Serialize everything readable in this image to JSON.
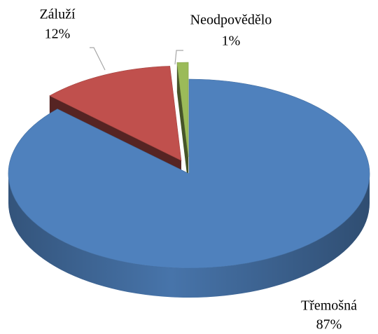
{
  "chart_data": {
    "type": "pie",
    "categories": [
      "Třemošná",
      "Záluží",
      "Neodpovědělo"
    ],
    "values": [
      87,
      12,
      1
    ],
    "value_labels": [
      "87%",
      "12%",
      "1%"
    ],
    "colors": [
      "#4f81bd",
      "#c0504d",
      "#9bbb59"
    ]
  }
}
